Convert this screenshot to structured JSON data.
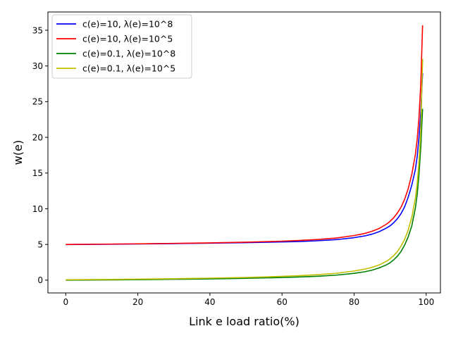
{
  "chart_data": {
    "type": "line",
    "title": "",
    "xlabel": "Link e load ratio(%)",
    "ylabel": "w(e)",
    "xlim": [
      -4.95,
      103.95
    ],
    "ylim": [
      -1.79,
      37.56
    ],
    "xticks": [
      "0",
      "20",
      "40",
      "60",
      "80",
      "100"
    ],
    "yticks": [
      "0",
      "5",
      "10",
      "15",
      "20",
      "25",
      "30",
      "35"
    ],
    "grid": false,
    "legend_position": "top-left",
    "series": [
      {
        "name": "c(e)=10, λ(e)=10^8",
        "color": "#0000ff",
        "x": [
          0,
          10,
          20,
          30,
          40,
          50,
          60,
          65,
          70,
          75,
          80,
          83,
          85,
          87,
          89,
          90,
          91,
          92,
          93,
          94,
          95,
          96,
          97,
          97.5,
          98,
          98.5,
          99
        ],
        "y": [
          4.98,
          5.02,
          5.07,
          5.12,
          5.18,
          5.25,
          5.35,
          5.42,
          5.52,
          5.67,
          5.95,
          6.2,
          6.45,
          6.8,
          7.3,
          7.62,
          8.05,
          8.6,
          9.3,
          10.25,
          11.6,
          13.3,
          15.5,
          17.3,
          20.0,
          23.5,
          29.0
        ]
      },
      {
        "name": "c(e)=10, λ(e)=10^5",
        "color": "#ff0000",
        "x": [
          0,
          10,
          20,
          30,
          40,
          50,
          60,
          65,
          70,
          75,
          80,
          83,
          85,
          87,
          89,
          90,
          91,
          92,
          93,
          94,
          95,
          96,
          97,
          97.5,
          98,
          98.5,
          99
        ],
        "y": [
          5.0,
          5.04,
          5.09,
          5.15,
          5.22,
          5.32,
          5.46,
          5.56,
          5.7,
          5.9,
          6.25,
          6.55,
          6.85,
          7.25,
          7.85,
          8.25,
          8.75,
          9.4,
          10.2,
          11.3,
          12.8,
          14.8,
          17.6,
          19.7,
          22.8,
          27.5,
          35.7
        ]
      },
      {
        "name": "c(e)=0.1, λ(e)=10^8",
        "color": "#008000",
        "x": [
          0,
          10,
          20,
          30,
          40,
          50,
          60,
          65,
          70,
          75,
          80,
          83,
          85,
          87,
          89,
          90,
          91,
          92,
          93,
          94,
          95,
          96,
          97,
          97.5,
          98,
          98.5,
          99
        ],
        "y": [
          0.0,
          0.03,
          0.07,
          0.12,
          0.18,
          0.26,
          0.37,
          0.45,
          0.55,
          0.7,
          0.95,
          1.18,
          1.4,
          1.72,
          2.15,
          2.45,
          2.85,
          3.35,
          4.0,
          4.9,
          6.05,
          7.6,
          10.1,
          12.0,
          14.8,
          18.6,
          24.0
        ]
      },
      {
        "name": "c(e)=0.1, λ(e)=10^5",
        "color": "#bfbf00",
        "x": [
          0,
          10,
          20,
          30,
          40,
          50,
          60,
          65,
          70,
          75,
          80,
          83,
          85,
          87,
          89,
          90,
          91,
          92,
          93,
          94,
          95,
          96,
          97,
          97.5,
          98,
          98.5,
          99
        ],
        "y": [
          0.05,
          0.09,
          0.14,
          0.2,
          0.28,
          0.38,
          0.53,
          0.63,
          0.77,
          0.96,
          1.28,
          1.55,
          1.8,
          2.15,
          2.65,
          3.0,
          3.45,
          4.0,
          4.75,
          5.7,
          7.0,
          8.8,
          11.5,
          13.5,
          16.6,
          21.0,
          31.0
        ]
      }
    ]
  }
}
